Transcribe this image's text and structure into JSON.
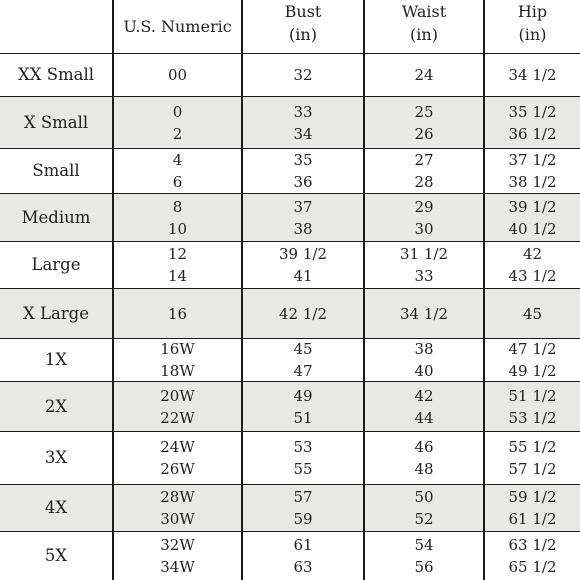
{
  "header": {
    "size": "",
    "numeric": "U.S. Numeric",
    "bust": "Bust",
    "bust_unit": "(in)",
    "waist": "Waist",
    "waist_unit": "(in)",
    "hip": "Hip",
    "hip_unit": "(in)"
  },
  "rows": [
    {
      "size": "XX Small",
      "numeric": [
        "00"
      ],
      "bust": [
        "32"
      ],
      "waist": [
        "24"
      ],
      "hip": [
        "34 1/2"
      ]
    },
    {
      "size": "X Small",
      "numeric": [
        "0",
        "2"
      ],
      "bust": [
        "33",
        "34"
      ],
      "waist": [
        "25",
        "26"
      ],
      "hip": [
        "35 1/2",
        "36 1/2"
      ]
    },
    {
      "size": "Small",
      "numeric": [
        "4",
        "6"
      ],
      "bust": [
        "35",
        "36"
      ],
      "waist": [
        "27",
        "28"
      ],
      "hip": [
        "37 1/2",
        "38 1/2"
      ]
    },
    {
      "size": "Medium",
      "numeric": [
        "8",
        "10"
      ],
      "bust": [
        "37",
        "38"
      ],
      "waist": [
        "29",
        "30"
      ],
      "hip": [
        "39 1/2",
        "40 1/2"
      ]
    },
    {
      "size": "Large",
      "numeric": [
        "12",
        "14"
      ],
      "bust": [
        "39 1/2",
        "41"
      ],
      "waist": [
        "31 1/2",
        "33"
      ],
      "hip": [
        "42",
        "43 1/2"
      ]
    },
    {
      "size": "X Large",
      "numeric": [
        "16"
      ],
      "bust": [
        "42 1/2"
      ],
      "waist": [
        "34 1/2"
      ],
      "hip": [
        "45"
      ]
    },
    {
      "size": "1X",
      "numeric": [
        "16W",
        "18W"
      ],
      "bust": [
        "45",
        "47"
      ],
      "waist": [
        "38",
        "40"
      ],
      "hip": [
        "47 1/2",
        "49 1/2"
      ]
    },
    {
      "size": "2X",
      "numeric": [
        "20W",
        "22W"
      ],
      "bust": [
        "49",
        "51"
      ],
      "waist": [
        "42",
        "44"
      ],
      "hip": [
        "51 1/2",
        "53 1/2"
      ]
    },
    {
      "size": "3X",
      "numeric": [
        "24W",
        "26W"
      ],
      "bust": [
        "53",
        "55"
      ],
      "waist": [
        "46",
        "48"
      ],
      "hip": [
        "55 1/2",
        "57 1/2"
      ]
    },
    {
      "size": "4X",
      "numeric": [
        "28W",
        "30W"
      ],
      "bust": [
        "57",
        "59"
      ],
      "waist": [
        "50",
        "52"
      ],
      "hip": [
        "59 1/2",
        "61 1/2"
      ]
    },
    {
      "size": "5X",
      "numeric": [
        "32W",
        "34W"
      ],
      "bust": [
        "61",
        "63"
      ],
      "waist": [
        "54",
        "56"
      ],
      "hip": [
        "63 1/2",
        "65 1/2"
      ]
    }
  ]
}
